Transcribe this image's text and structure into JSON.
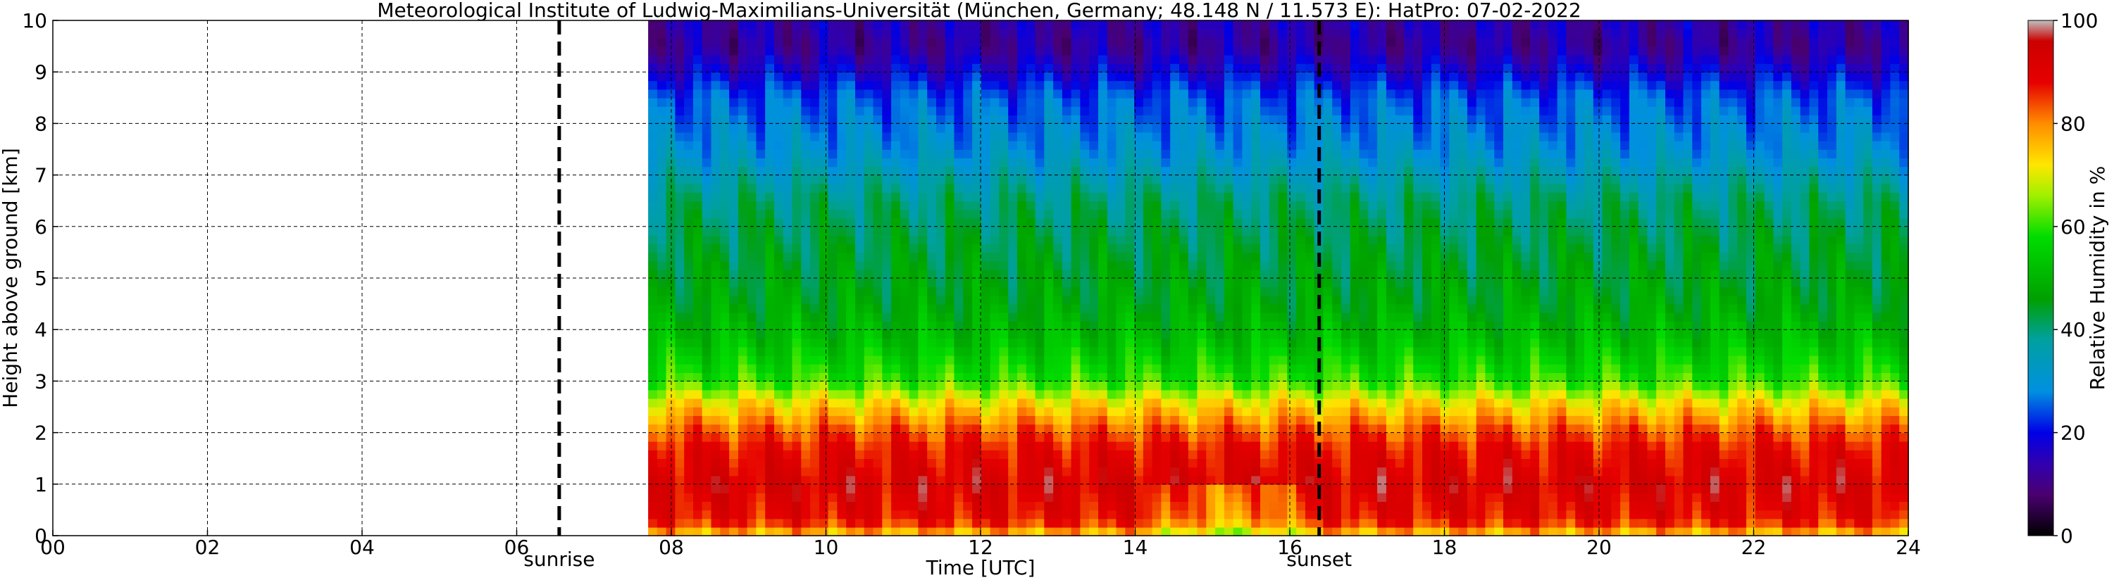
{
  "chart_data": {
    "type": "heatmap",
    "title": "Meteorological Institute of Ludwig-Maximilians-Universität (München, Germany; 48.148 N / 11.573 E):    HatPro: 07-02-2022",
    "xlabel": "Time [UTC]",
    "ylabel": "Height above ground [km]",
    "xlim": [
      0,
      24
    ],
    "ylim": [
      0,
      10
    ],
    "x_ticks": [
      "00",
      "02",
      "04",
      "06",
      "08",
      "10",
      "12",
      "14",
      "16",
      "18",
      "20",
      "22",
      "24"
    ],
    "y_ticks": [
      "0",
      "1",
      "2",
      "3",
      "4",
      "5",
      "6",
      "7",
      "8",
      "9",
      "10"
    ],
    "grid": true,
    "data_start_hour": 7.7,
    "data_end_hour": 24,
    "colorbar": {
      "label": "Relative Humidity in %",
      "range": [
        0,
        100
      ],
      "ticks": [
        "0",
        "20",
        "40",
        "60",
        "80",
        "100"
      ]
    },
    "events": [
      {
        "label": "sunrise",
        "hour": 6.55
      },
      {
        "label": "sunset",
        "hour": 16.38
      }
    ],
    "colors": {
      "bottom_red": "#e60000",
      "orange": "#ff8c00",
      "yellow": "#ffe600",
      "green": "#00c800",
      "teal": "#00a0a0",
      "light_blue": "#0090e0",
      "blue": "#0000e6"
    },
    "humidity_profile": {
      "heights_km": [
        0,
        0.3,
        1,
        1.7,
        2.1,
        2.6,
        3,
        3.8,
        4.5,
        5.5,
        6.5,
        7.5,
        8.5,
        9,
        9.5,
        10
      ],
      "rh_percent": [
        74,
        88,
        92,
        88,
        82,
        72,
        60,
        52,
        47,
        44,
        40,
        30,
        25,
        18,
        12,
        14
      ]
    }
  }
}
